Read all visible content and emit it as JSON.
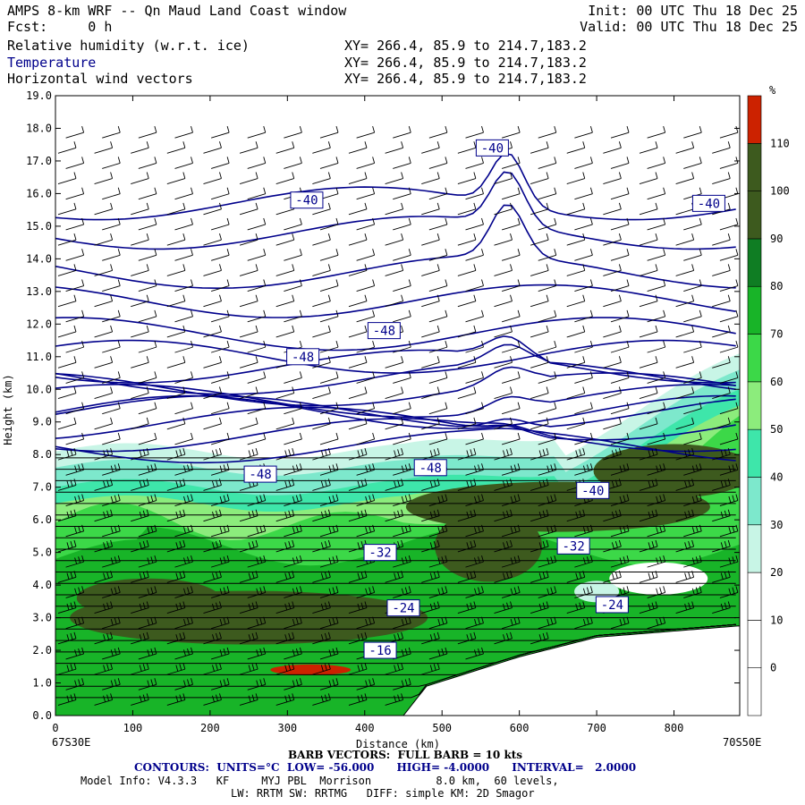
{
  "header": {
    "title": "AMPS 8-km WRF -- Qn Maud Land Coast window",
    "fcst": "Fcst:     0 h",
    "init": "Init: 00 UTC Thu 18 Dec 25",
    "valid": "Valid: 00 UTC Thu 18 Dec 25",
    "fields": [
      {
        "name": "Relative humidity (w.r.t. ice)",
        "xy": "XY= 266.4, 85.9 to 214.7,183.2"
      },
      {
        "name": "Temperature",
        "xy": "XY= 266.4, 85.9 to 214.7,183.2"
      },
      {
        "name": "Horizontal wind vectors",
        "xy": "XY= 266.4, 85.9 to 214.7,183.2"
      }
    ]
  },
  "chart_data": {
    "type": "cross-section",
    "xlabel": "Distance (km)",
    "ylabel": "Height (km)",
    "xlim": [
      0,
      885
    ],
    "ylim": [
      0,
      19
    ],
    "x_ticks": [
      0,
      100,
      200,
      300,
      400,
      500,
      600,
      700,
      800
    ],
    "y_ticks": [
      "0.0",
      "1.0",
      "2.0",
      "3.0",
      "4.0",
      "5.0",
      "6.0",
      "7.0",
      "8.0",
      "9.0",
      "10.0",
      "11.0",
      "12.0",
      "13.0",
      "14.0",
      "15.0",
      "16.0",
      "17.0",
      "18.0",
      "19.0"
    ],
    "left_endpoint": "67S30E",
    "right_endpoint": "70S50E",
    "colorbar": {
      "unit": "%",
      "levels": [
        0,
        10,
        20,
        30,
        40,
        50,
        60,
        70,
        80,
        90,
        100,
        110
      ],
      "colors": [
        "#ffffff",
        "#ffffff",
        "#ffffff",
        "#c8f5e6",
        "#7de8cc",
        "#3ee6aa",
        "#8cec7c",
        "#3cd848",
        "#18b428",
        "#0f7d23",
        "#3d5a1e",
        "#3d5a1e",
        "#cc2200"
      ]
    },
    "contour_labels": [
      {
        "text": "-40",
        "x": 325,
        "y": 15.8
      },
      {
        "text": "-40",
        "x": 565,
        "y": 17.4
      },
      {
        "text": "-40",
        "x": 845,
        "y": 15.7
      },
      {
        "text": "-48",
        "x": 425,
        "y": 11.8
      },
      {
        "text": "-48",
        "x": 320,
        "y": 11.0
      },
      {
        "text": "-48",
        "x": 265,
        "y": 7.4
      },
      {
        "text": "-48",
        "x": 485,
        "y": 7.6
      },
      {
        "text": "-40",
        "x": 695,
        "y": 6.9
      },
      {
        "text": "-32",
        "x": 670,
        "y": 5.2
      },
      {
        "text": "-32",
        "x": 420,
        "y": 5.0
      },
      {
        "text": "-24",
        "x": 450,
        "y": 3.3
      },
      {
        "text": "-24",
        "x": 720,
        "y": 3.4
      },
      {
        "text": "-16",
        "x": 420,
        "y": 2.0
      }
    ],
    "barb_vectors_label": "BARB VECTORS:  FULL BARB = 10 kts",
    "contours": {
      "prefix": "CONTOURS:  UNITS=",
      "units": "°C",
      "low": "LOW= -56.000",
      "high": "HIGH= -4.0000",
      "interval": "INTERVAL=   2.0000"
    }
  },
  "footer": {
    "model_info": "Model Info: V4.3.3   KF     MYJ PBL  Morrison          8.0 km,  60 levels,",
    "model_info2": "LW: RRTM SW: RRTMG   DIFF: simple KM: 2D Smagor"
  },
  "colors": {
    "contour": "#00008b",
    "axis": "#000000"
  }
}
